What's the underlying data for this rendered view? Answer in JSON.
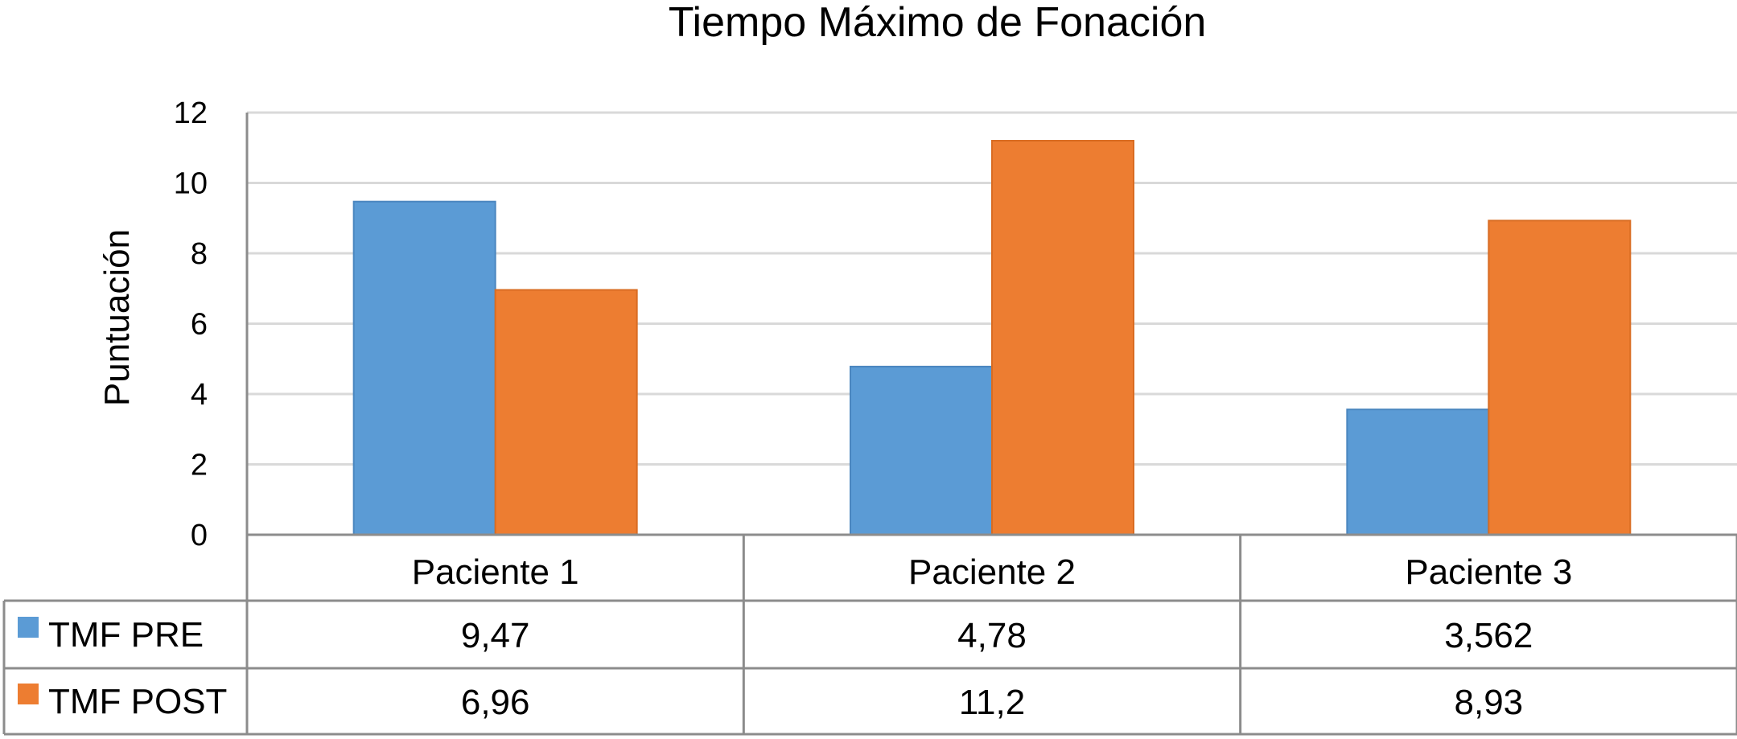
{
  "chart_data": {
    "type": "bar",
    "title": "Tiempo Máximo de Fonación",
    "xlabel": "",
    "ylabel": "Puntuación",
    "ylim": [
      0,
      12
    ],
    "yticks": [
      0,
      2,
      4,
      6,
      8,
      10,
      12
    ],
    "grid": true,
    "categories": [
      "Paciente 1",
      "Paciente 2",
      "Paciente 3"
    ],
    "series": [
      {
        "name": "TMF PRE",
        "color": "#5b9bd5",
        "values": [
          9.47,
          4.78,
          3.562
        ],
        "labels": [
          "9,47",
          "4,78",
          "3,562"
        ]
      },
      {
        "name": "TMF POST",
        "color": "#ed7d31",
        "values": [
          6.96,
          11.2,
          8.93
        ],
        "labels": [
          "6,96",
          "11,2",
          "8,93"
        ]
      }
    ],
    "legend": "data-table"
  }
}
